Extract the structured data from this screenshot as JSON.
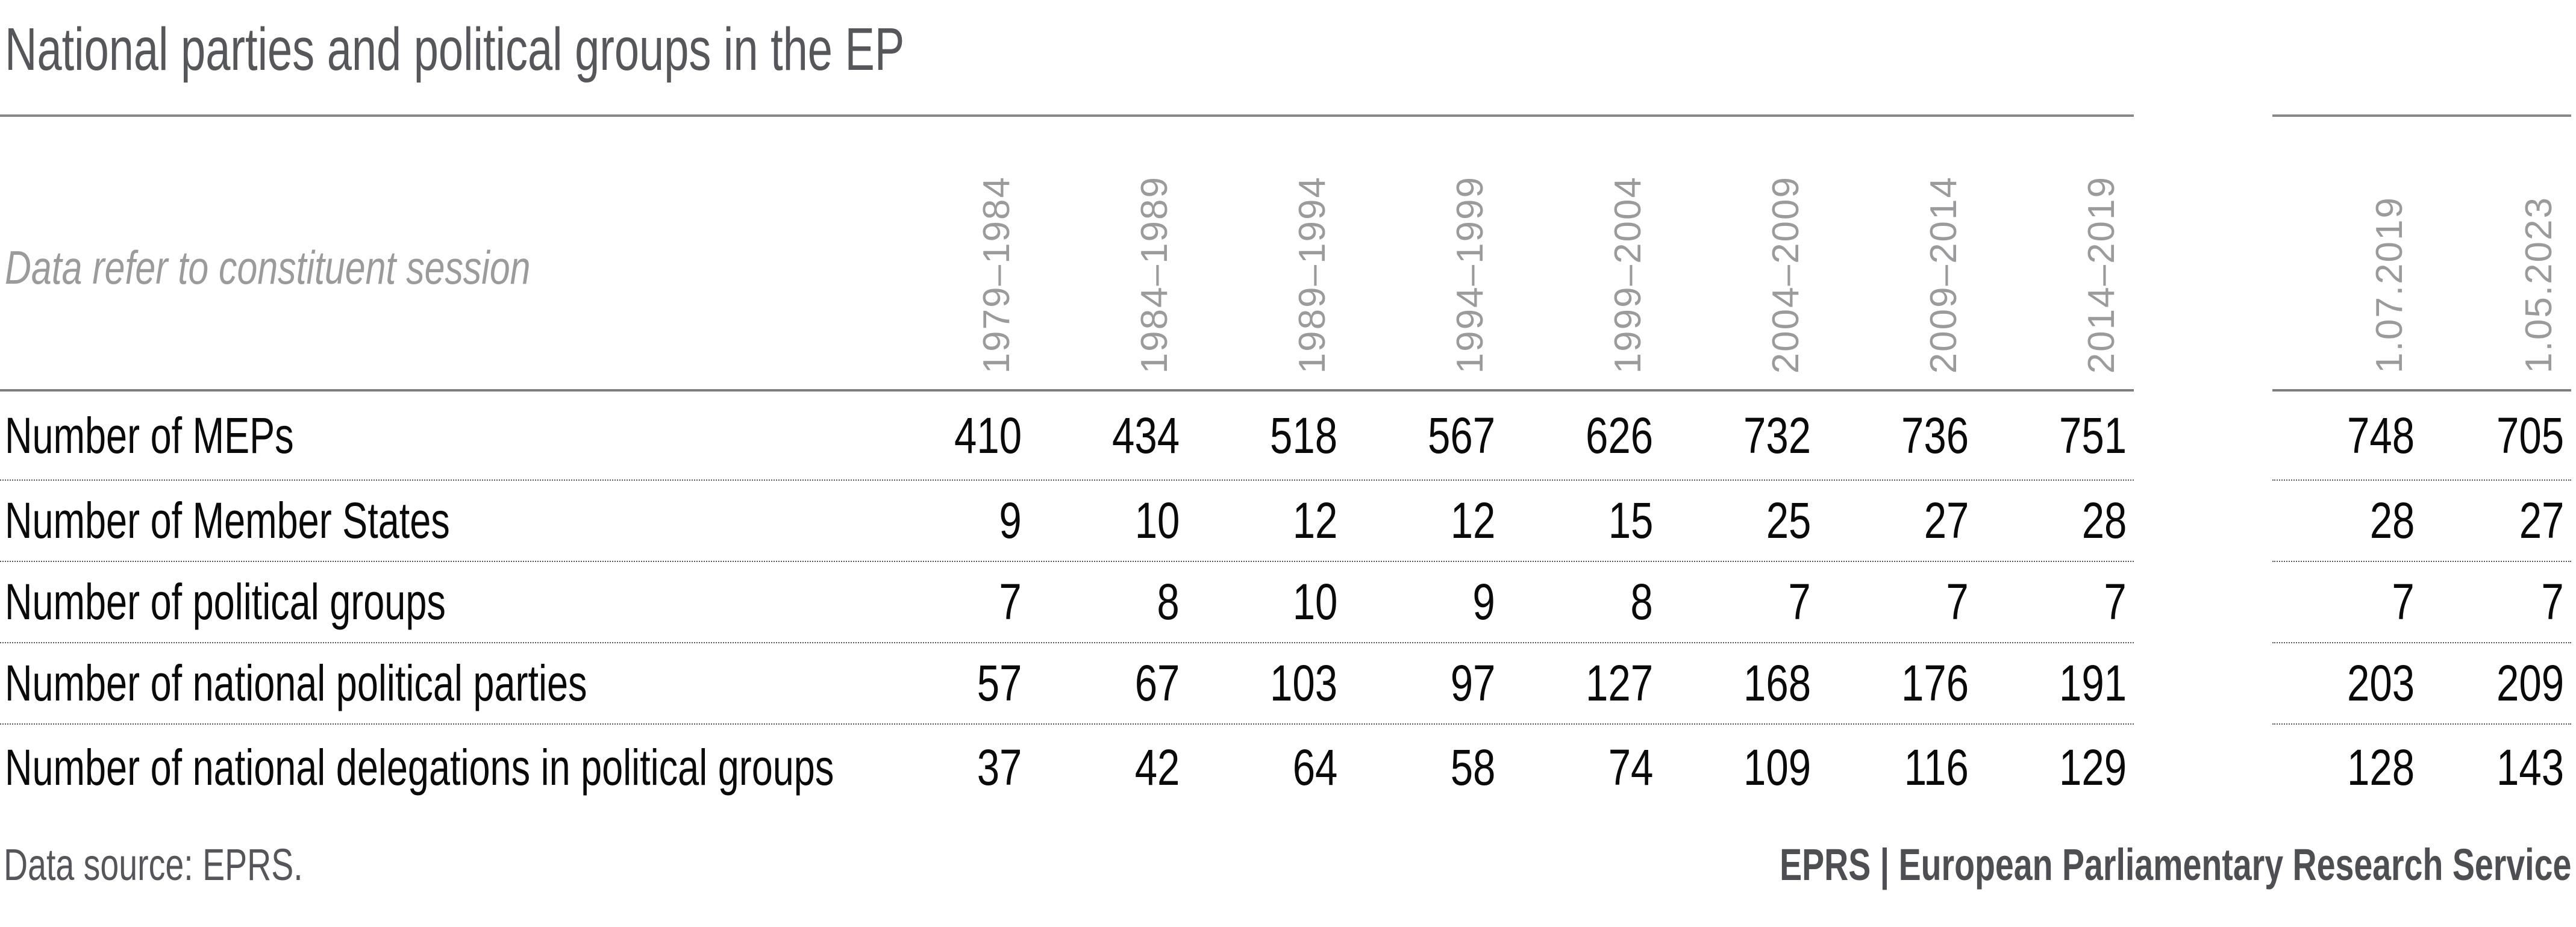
{
  "title": "National parties and political groups in the EP",
  "note": "Data refer to constituent session",
  "footer": {
    "source": "Data source: EPRS.",
    "branding": "EPRS | European Parliamentary Research Service"
  },
  "colors": {
    "title_text": "#55575a",
    "header_text": "#9b9b9d",
    "rule": "#87888b",
    "row_text": "#0a0a0a",
    "footer_text": "#55565a"
  },
  "chart_data": {
    "type": "table",
    "title": "National parties and political groups in the EP",
    "subtitle": "Data refer to constituent session",
    "term_columns": [
      "1979–1984",
      "1984–1989",
      "1989–1994",
      "1994–1999",
      "1999–2004",
      "2004–2009",
      "2009–2014",
      "2014–2019"
    ],
    "snapshot_columns": [
      "1.07.2019",
      "1.05.2023"
    ],
    "rows": [
      {
        "label": "Number of MEPs",
        "terms": [
          410,
          434,
          518,
          567,
          626,
          732,
          736,
          751
        ],
        "snapshots": [
          748,
          705
        ]
      },
      {
        "label": "Number of Member States",
        "terms": [
          9,
          10,
          12,
          12,
          15,
          25,
          27,
          28
        ],
        "snapshots": [
          28,
          27
        ]
      },
      {
        "label": "Number of political groups",
        "terms": [
          7,
          8,
          10,
          9,
          8,
          7,
          7,
          7
        ],
        "snapshots": [
          7,
          7
        ]
      },
      {
        "label": "Number of national political parties",
        "terms": [
          57,
          67,
          103,
          97,
          127,
          168,
          176,
          191
        ],
        "snapshots": [
          203,
          209
        ]
      },
      {
        "label": "Number of national delegations in political groups",
        "terms": [
          37,
          42,
          64,
          58,
          74,
          109,
          116,
          129
        ],
        "snapshots": [
          128,
          143
        ]
      }
    ],
    "layout": {
      "grid": "off",
      "legend": "none",
      "column_gap_after": 8,
      "values_alignment": "right"
    }
  }
}
